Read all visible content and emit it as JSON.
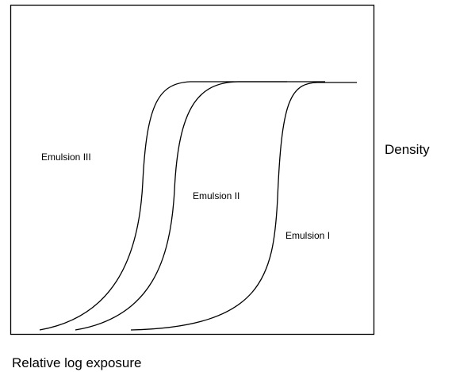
{
  "labels": {
    "emulsion_3": "Emulsion III",
    "emulsion_2": "Emulsion II",
    "emulsion_1": "Emulsion I"
  },
  "y_axis_label": "Density",
  "x_axis_label": "Relative log exposure"
}
